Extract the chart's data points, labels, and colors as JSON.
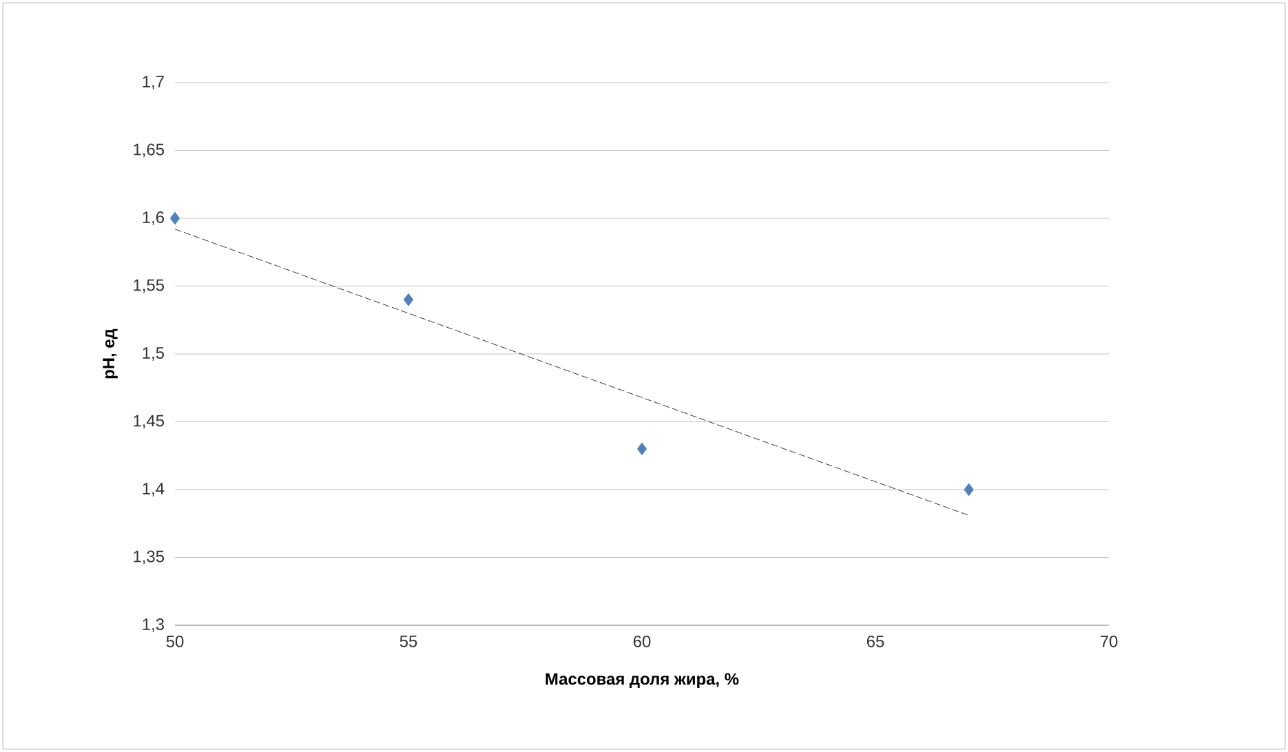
{
  "chart_data": {
    "type": "scatter",
    "xlabel": "Массовая доля жира, %",
    "ylabel": "pH, ед",
    "xlim": [
      50,
      70
    ],
    "xticks": [
      50,
      55,
      60,
      65,
      70
    ],
    "ylim": [
      1.3,
      1.7
    ],
    "yticks": [
      {
        "value": 1.3,
        "label": "1,3"
      },
      {
        "value": 1.35,
        "label": "1,35"
      },
      {
        "value": 1.4,
        "label": "1,4"
      },
      {
        "value": 1.45,
        "label": "1,45"
      },
      {
        "value": 1.5,
        "label": "1,5"
      },
      {
        "value": 1.55,
        "label": "1,55"
      },
      {
        "value": 1.6,
        "label": "1,6"
      },
      {
        "value": 1.65,
        "label": "1,65"
      },
      {
        "value": 1.7,
        "label": "1,7"
      }
    ],
    "grid": "y",
    "series": [
      {
        "x": [
          50,
          55,
          60,
          67
        ],
        "values": [
          1.6,
          1.54,
          1.43,
          1.4
        ],
        "color": "#4f81bd",
        "marker": "diamond"
      },
      {
        "type": "line",
        "x": [
          50,
          67
        ],
        "values": [
          1.592,
          1.381
        ],
        "color": "#000000",
        "marker": "none",
        "line_style": "dashed"
      }
    ]
  }
}
